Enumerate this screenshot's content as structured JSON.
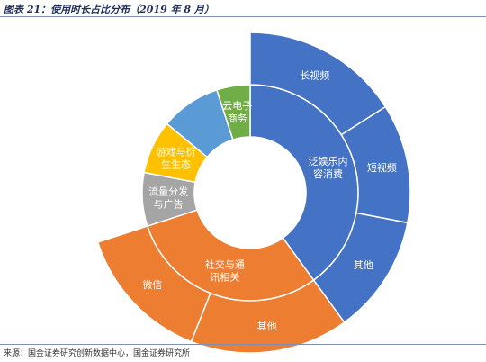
{
  "header": {
    "title": "图表 21：使用时长占比分布（2019 年 8 月）"
  },
  "footer": {
    "source": "来源：国金证券研究创新数据中心，国金证券研究所"
  },
  "colors": {
    "blue": "#4472c4",
    "orange": "#ed7d31",
    "gray": "#a5a5a5",
    "yellow": "#ffc000",
    "lightblue": "#5b9bd5",
    "green": "#70ad47"
  },
  "chart_data": {
    "type": "pie",
    "style": "sunburst",
    "start_angle_deg": 0,
    "direction": "clockwise",
    "title": "",
    "inner": [
      {
        "label": "泛娱乐内容消费",
        "value": 40,
        "color": "#4472c4"
      },
      {
        "label": "社交与通讯相关",
        "value": 30,
        "color": "#ed7d31"
      },
      {
        "label": "流量分发与广告",
        "value": 8,
        "color": "#a5a5a5"
      },
      {
        "label": "游戏与衍生生态",
        "value": 8,
        "color": "#ffc000"
      },
      {
        "label": "",
        "value": 9,
        "color": "#5b9bd5"
      },
      {
        "label": "云电子商务",
        "value": 5,
        "color": "#70ad47"
      }
    ],
    "outer": [
      {
        "label": "长视频",
        "value": 16,
        "parent": "泛娱乐内容消费",
        "color": "#4472c4"
      },
      {
        "label": "短视频",
        "value": 12,
        "parent": "泛娱乐内容消费",
        "color": "#4472c4"
      },
      {
        "label": "其他",
        "value": 12,
        "parent": "泛娱乐内容消费",
        "color": "#4472c4"
      },
      {
        "label": "其他",
        "value": 16,
        "parent": "社交与通讯相关",
        "color": "#ed7d31"
      },
      {
        "label": "微信",
        "value": 14,
        "parent": "社交与通讯相关",
        "color": "#ed7d31"
      }
    ]
  }
}
